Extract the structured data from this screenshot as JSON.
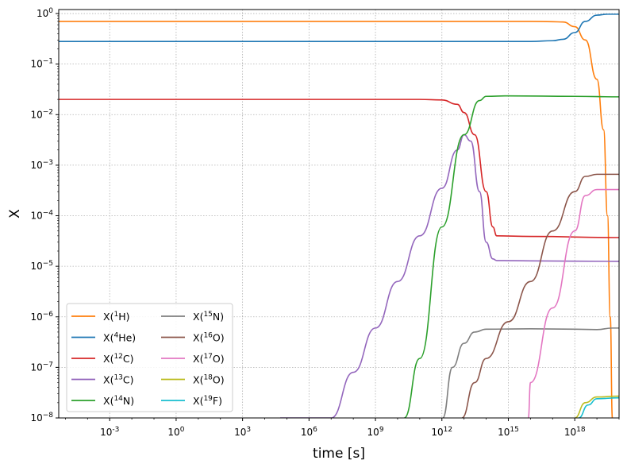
{
  "chart_data": {
    "type": "line",
    "xlabel": "time [s]",
    "ylabel": "X",
    "xscale": "log",
    "yscale": "log",
    "xlim": [
      5e-06,
      1e+20
    ],
    "ylim": [
      1e-08,
      1.2
    ],
    "grid": true,
    "legend_position": "lower-left",
    "legend_columns": 2,
    "x_ticks": [
      {
        "exp": "-3",
        "value": 0.001
      },
      {
        "exp": "0",
        "value": 1
      },
      {
        "exp": "3",
        "value": 1000
      },
      {
        "exp": "6",
        "value": 1000000.0
      },
      {
        "exp": "9",
        "value": 1000000000.0
      },
      {
        "exp": "12",
        "value": 1000000000000.0
      },
      {
        "exp": "15",
        "value": 1000000000000000.0
      },
      {
        "exp": "18",
        "value": 1e+18
      }
    ],
    "y_ticks": [
      {
        "exp": "0",
        "value": 1
      },
      {
        "exp": "−1",
        "value": 0.1
      },
      {
        "exp": "−2",
        "value": 0.01
      },
      {
        "exp": "−3",
        "value": 0.001
      },
      {
        "exp": "−4",
        "value": 0.0001
      },
      {
        "exp": "−5",
        "value": 1e-05
      },
      {
        "exp": "−6",
        "value": 1e-06
      },
      {
        "exp": "−7",
        "value": 1e-07
      },
      {
        "exp": "−8",
        "value": 1e-08
      }
    ],
    "series": [
      {
        "name": "X(1H)",
        "label_pre": "X(",
        "label_sup": "1",
        "label_post": "H)",
        "color": "#ff7f0e",
        "points": [
          [
            5e-06,
            0.7
          ],
          [
            1e+16,
            0.7
          ],
          [
            1e+17,
            0.69
          ],
          [
            3e+17,
            0.68
          ],
          [
            1e+18,
            0.55
          ],
          [
            3e+18,
            0.3
          ],
          [
            1e+19,
            0.05
          ],
          [
            2e+19,
            0.005
          ],
          [
            3e+19,
            0.0001
          ],
          [
            4e+19,
            1e-06
          ],
          [
            5e+19,
            1e-08
          ]
        ]
      },
      {
        "name": "X(4He)",
        "label_pre": "X(",
        "label_sup": "4",
        "label_post": "He)",
        "color": "#1f77b4",
        "points": [
          [
            5e-06,
            0.28
          ],
          [
            1e+16,
            0.28
          ],
          [
            1e+17,
            0.29
          ],
          [
            3e+17,
            0.31
          ],
          [
            1e+18,
            0.42
          ],
          [
            3e+18,
            0.7
          ],
          [
            1e+19,
            0.93
          ],
          [
            3e+19,
            0.97
          ],
          [
            1e+20,
            0.97
          ]
        ]
      },
      {
        "name": "X(12C)",
        "label_pre": "X(",
        "label_sup": "12",
        "label_post": "C)",
        "color": "#d62728",
        "points": [
          [
            5e-06,
            0.02
          ],
          [
            100000000000.0,
            0.02
          ],
          [
            1000000000000.0,
            0.0195
          ],
          [
            5000000000000.0,
            0.016
          ],
          [
            10000000000000.0,
            0.011
          ],
          [
            30000000000000.0,
            0.004
          ],
          [
            100000000000000.0,
            0.0003
          ],
          [
            200000000000000.0,
            6e-05
          ],
          [
            300000000000000.0,
            4e-05
          ],
          [
            1e+16,
            3.9e-05
          ],
          [
            1e+20,
            3.7e-05
          ]
        ]
      },
      {
        "name": "X(13C)",
        "label_pre": "X(",
        "label_sup": "13",
        "label_post": "C)",
        "color": "#9467bd",
        "points": [
          [
            50000.0,
            1e-08
          ],
          [
            10000000.0,
            1e-08
          ],
          [
            100000000.0,
            8e-08
          ],
          [
            1000000000.0,
            6e-07
          ],
          [
            10000000000.0,
            5e-06
          ],
          [
            100000000000.0,
            4e-05
          ],
          [
            1000000000000.0,
            0.00035
          ],
          [
            5000000000000.0,
            0.002
          ],
          [
            10000000000000.0,
            0.004
          ],
          [
            20000000000000.0,
            0.003
          ],
          [
            50000000000000.0,
            0.0003
          ],
          [
            100000000000000.0,
            3e-05
          ],
          [
            200000000000000.0,
            1.4e-05
          ],
          [
            300000000000000.0,
            1.3e-05
          ],
          [
            1e+16,
            1.28e-05
          ],
          [
            1e+20,
            1.25e-05
          ]
        ]
      },
      {
        "name": "X(14N)",
        "label_pre": "X(",
        "label_sup": "14",
        "label_post": "N)",
        "color": "#2ca02c",
        "points": [
          [
            20000000000.0,
            1e-08
          ],
          [
            100000000000.0,
            1.5e-07
          ],
          [
            1000000000000.0,
            6e-05
          ],
          [
            10000000000000.0,
            0.004
          ],
          [
            50000000000000.0,
            0.019
          ],
          [
            100000000000000.0,
            0.023
          ],
          [
            1000000000000000.0,
            0.0235
          ],
          [
            1e+18,
            0.023
          ],
          [
            1e+20,
            0.0225
          ]
        ]
      },
      {
        "name": "X(15N)",
        "label_pre": "X(",
        "label_sup": "15",
        "label_post": "N)",
        "color": "#7f7f7f",
        "points": [
          [
            1100000000000.0,
            1e-08
          ],
          [
            3000000000000.0,
            1e-07
          ],
          [
            10000000000000.0,
            3e-07
          ],
          [
            30000000000000.0,
            5e-07
          ],
          [
            100000000000000.0,
            5.7e-07
          ],
          [
            1e+16,
            5.8e-07
          ],
          [
            1e+18,
            5.7e-07
          ],
          [
            1e+19,
            5.6e-07
          ],
          [
            5e+19,
            6e-07
          ],
          [
            1e+20,
            6e-07
          ]
        ]
      },
      {
        "name": "X(16O)",
        "label_pre": "X(",
        "label_sup": "16",
        "label_post": "O)",
        "color": "#8c564b",
        "points": [
          [
            8000000000000.0,
            1e-08
          ],
          [
            30000000000000.0,
            5e-08
          ],
          [
            100000000000000.0,
            1.5e-07
          ],
          [
            1000000000000000.0,
            8e-07
          ],
          [
            1e+16,
            5e-06
          ],
          [
            1e+17,
            5e-05
          ],
          [
            1e+18,
            0.0003
          ],
          [
            3e+18,
            0.0006
          ],
          [
            1e+19,
            0.00066
          ],
          [
            1e+20,
            0.00066
          ]
        ]
      },
      {
        "name": "X(17O)",
        "label_pre": "X(",
        "label_sup": "17",
        "label_post": "O)",
        "color": "#e377c2",
        "points": [
          [
            8000000000000000.0,
            1e-08
          ],
          [
            1e+16,
            5e-08
          ],
          [
            1e+17,
            1.5e-06
          ],
          [
            1e+18,
            5e-05
          ],
          [
            3e+18,
            0.00025
          ],
          [
            1e+19,
            0.00033
          ],
          [
            1e+20,
            0.00033
          ]
        ]
      },
      {
        "name": "X(18O)",
        "label_pre": "X(",
        "label_sup": "18",
        "label_post": "O)",
        "color": "#bcbd22",
        "points": [
          [
            1e+18,
            1e-08
          ],
          [
            3e+18,
            2e-08
          ],
          [
            1e+19,
            2.6e-08
          ],
          [
            1e+20,
            2.7e-08
          ]
        ]
      },
      {
        "name": "X(19F)",
        "label_pre": "X(",
        "label_sup": "19",
        "label_post": "F)",
        "color": "#17becf",
        "points": [
          [
            1.5e+18,
            1e-08
          ],
          [
            4e+18,
            1.8e-08
          ],
          [
            1e+19,
            2.4e-08
          ],
          [
            1e+20,
            2.5e-08
          ]
        ]
      }
    ]
  }
}
